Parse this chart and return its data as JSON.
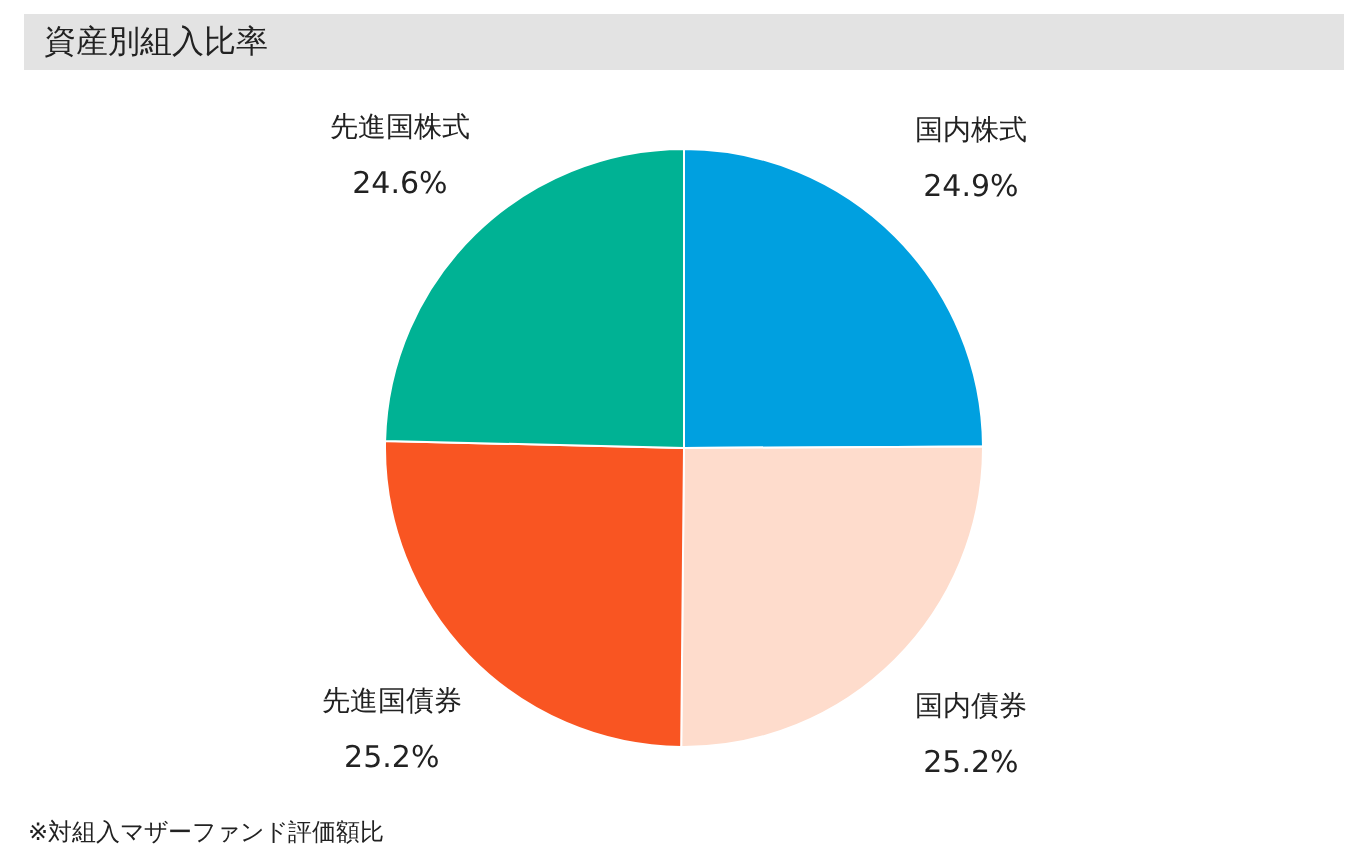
{
  "chart_data": {
    "type": "pie",
    "title": "資産別組入比率",
    "categories": [
      "国内株式",
      "国内債券",
      "先進国債券",
      "先進国株式"
    ],
    "values": [
      24.9,
      25.2,
      25.2,
      24.6
    ],
    "colors": [
      "#00a0e0",
      "#fedccc",
      "#f95522",
      "#00b294"
    ],
    "value_labels": [
      "24.9%",
      "25.2%",
      "25.2%",
      "24.6%"
    ],
    "legend": false,
    "annotations": [
      "※対組入マザーファンド評価額比"
    ]
  }
}
